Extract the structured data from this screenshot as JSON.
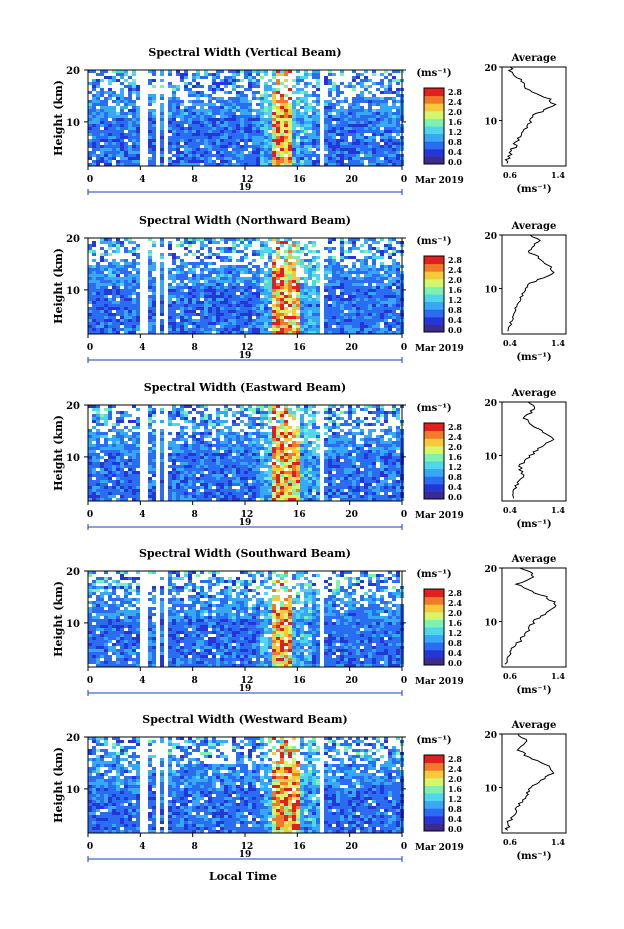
{
  "figure": {
    "common": {
      "ylabel": "Height (km)",
      "yticks": [
        10,
        20
      ],
      "xticks": [
        "0",
        "4",
        "8",
        "12",
        "16",
        "20",
        "0"
      ],
      "day_label": "19",
      "month_label": "Mar 2019",
      "colorbar_unit": "(ms⁻¹)",
      "colorbar_ticks": [
        "2.8",
        "2.4",
        "2.0",
        "1.6",
        "1.2",
        "0.8",
        "0.4",
        "0.0"
      ],
      "avg_title": "Average",
      "avg_xlabel": "(ms⁻¹)",
      "xlabel_bottom": "Local Time"
    },
    "colors": [
      "#3b2a8f",
      "#2437d6",
      "#2a6cf2",
      "#36a8f5",
      "#4fd6ea",
      "#7ef0b0",
      "#d6f56a",
      "#f6c83a",
      "#f07a2a",
      "#e02020"
    ]
  },
  "chart_data": [
    {
      "type": "heatmap",
      "title": "Spectral Width (Vertical Beam)",
      "x_range_hours": [
        0,
        24
      ],
      "y_range_km": [
        1.5,
        20
      ],
      "color_range": [
        0.0,
        2.8
      ],
      "gaps_hours": [
        [
          3.8,
          4.4
        ],
        [
          5.0,
          5.4
        ],
        [
          5.6,
          6.0
        ],
        [
          17.5,
          17.8
        ]
      ],
      "high_width_column_hours": [
        14.0,
        15.5
      ],
      "average_profile": {
        "xticks": [
          "0.6",
          "1.4"
        ],
        "xlim": [
          0.6,
          1.4
        ],
        "heights_km": [
          2,
          3,
          4,
          5,
          6,
          7,
          8,
          9,
          10,
          11,
          12,
          13,
          14,
          15,
          16,
          17,
          18,
          19,
          20
        ],
        "values": [
          0.66,
          0.68,
          0.7,
          0.75,
          0.78,
          0.82,
          0.88,
          0.92,
          0.95,
          1.0,
          1.15,
          1.25,
          1.2,
          1.05,
          0.9,
          0.85,
          0.8,
          0.72,
          0.7
        ]
      }
    },
    {
      "type": "heatmap",
      "title": "Spectral Width (Northward Beam)",
      "x_range_hours": [
        0,
        24
      ],
      "y_range_km": [
        1.5,
        20
      ],
      "color_range": [
        0.0,
        2.8
      ],
      "gaps_hours": [
        [
          3.8,
          4.4
        ],
        [
          5.0,
          5.4
        ],
        [
          5.6,
          6.0
        ],
        [
          17.5,
          17.8
        ]
      ],
      "high_width_column_hours": [
        14.0,
        16.0
      ],
      "average_profile": {
        "xticks": [
          "0.4",
          "1.4"
        ],
        "xlim": [
          0.4,
          1.4
        ],
        "heights_km": [
          2,
          3,
          4,
          5,
          6,
          7,
          8,
          9,
          10,
          11,
          12,
          13,
          14,
          15,
          16,
          17,
          18,
          19,
          20
        ],
        "values": [
          0.5,
          0.52,
          0.55,
          0.6,
          0.62,
          0.65,
          0.7,
          0.72,
          0.75,
          0.85,
          1.05,
          1.2,
          1.15,
          1.05,
          0.95,
          0.8,
          0.9,
          1.0,
          0.85
        ]
      }
    },
    {
      "type": "heatmap",
      "title": "Spectral Width (Eastward Beam)",
      "x_range_hours": [
        0,
        24
      ],
      "y_range_km": [
        1.5,
        20
      ],
      "color_range": [
        0.0,
        2.8
      ],
      "gaps_hours": [
        [
          3.8,
          4.4
        ],
        [
          5.0,
          5.4
        ],
        [
          5.6,
          6.0
        ],
        [
          17.5,
          17.8
        ]
      ],
      "high_width_column_hours": [
        14.0,
        16.0
      ],
      "average_profile": {
        "xticks": [
          "0.4",
          "1.4"
        ],
        "xlim": [
          0.4,
          1.4
        ],
        "heights_km": [
          2,
          3,
          4,
          5,
          6,
          7,
          8,
          9,
          10,
          11,
          12,
          13,
          14,
          15,
          16,
          17,
          18,
          19,
          20
        ],
        "values": [
          0.55,
          0.58,
          0.6,
          0.65,
          0.72,
          0.7,
          0.68,
          0.75,
          0.85,
          0.95,
          1.05,
          1.2,
          1.1,
          0.95,
          0.85,
          0.75,
          0.85,
          0.9,
          0.8
        ]
      }
    },
    {
      "type": "heatmap",
      "title": "Spectral Width (Southward Beam)",
      "x_range_hours": [
        0,
        24
      ],
      "y_range_km": [
        1.5,
        20
      ],
      "color_range": [
        0.0,
        2.8
      ],
      "gaps_hours": [
        [
          3.8,
          4.4
        ],
        [
          5.0,
          5.4
        ],
        [
          5.6,
          6.0
        ],
        [
          17.5,
          17.8
        ]
      ],
      "high_width_column_hours": [
        14.0,
        15.5
      ],
      "average_profile": {
        "xticks": [
          "0.6",
          "1.4"
        ],
        "xlim": [
          0.6,
          1.4
        ],
        "heights_km": [
          2,
          3,
          4,
          5,
          6,
          7,
          8,
          9,
          10,
          11,
          12,
          13,
          14,
          15,
          16,
          17,
          18,
          19,
          20
        ],
        "values": [
          0.65,
          0.68,
          0.7,
          0.74,
          0.8,
          0.85,
          0.9,
          0.95,
          1.0,
          1.1,
          1.2,
          1.3,
          1.2,
          1.1,
          0.9,
          0.8,
          0.95,
          1.0,
          0.85
        ]
      }
    },
    {
      "type": "heatmap",
      "title": "Spectral Width (Westward Beam)",
      "x_range_hours": [
        0,
        24
      ],
      "y_range_km": [
        1.5,
        20
      ],
      "color_range": [
        0.0,
        2.8
      ],
      "gaps_hours": [
        [
          3.8,
          4.4
        ],
        [
          5.0,
          5.4
        ],
        [
          5.6,
          6.0
        ],
        [
          17.5,
          17.8
        ]
      ],
      "high_width_column_hours": [
        14.0,
        16.0
      ],
      "average_profile": {
        "xticks": [
          "0.6",
          "1.4"
        ],
        "xlim": [
          0.6,
          1.4
        ],
        "heights_km": [
          2,
          3,
          4,
          5,
          6,
          7,
          8,
          9,
          10,
          11,
          12,
          13,
          14,
          15,
          16,
          17,
          18,
          19,
          20
        ],
        "values": [
          0.65,
          0.68,
          0.7,
          0.74,
          0.78,
          0.82,
          0.88,
          0.92,
          0.98,
          1.05,
          1.15,
          1.25,
          1.2,
          1.05,
          0.9,
          0.8,
          0.85,
          0.9,
          0.8
        ]
      }
    }
  ]
}
